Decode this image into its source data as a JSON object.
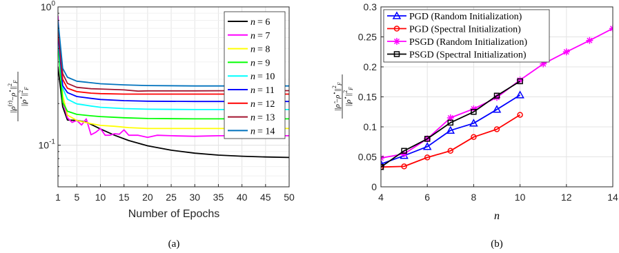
{
  "chart_data": [
    {
      "type": "line",
      "title": "",
      "xlabel": "Number of Epochs",
      "ylabel": "||ρ^(τ) − ρ*||²_F / ||ρ*||²_F",
      "caption": "(a)",
      "yscale": "log",
      "xlim": [
        1,
        50
      ],
      "ylim": [
        0.05,
        1
      ],
      "xticks": [
        1,
        5,
        10,
        15,
        20,
        25,
        30,
        35,
        40,
        45,
        50
      ],
      "yticks": [
        {
          "value": 0.1,
          "base": "10",
          "exp": "-1"
        },
        {
          "value": 1,
          "base": "10",
          "exp": "0"
        }
      ],
      "grid": true,
      "legend_position": "top-right",
      "series": [
        {
          "name": "n = 6",
          "label_var": "n",
          "label_val": "= 6",
          "color": "#000000",
          "points": [
            [
              1,
              0.37
            ],
            [
              2,
              0.19
            ],
            [
              3,
              0.152
            ],
            [
              5,
              0.151
            ],
            [
              7,
              0.147
            ],
            [
              10,
              0.131
            ],
            [
              13,
              0.118
            ],
            [
              16,
              0.108
            ],
            [
              20,
              0.099
            ],
            [
              25,
              0.092
            ],
            [
              30,
              0.0875
            ],
            [
              35,
              0.0848
            ],
            [
              40,
              0.0832
            ],
            [
              45,
              0.0822
            ],
            [
              50,
              0.0815
            ]
          ]
        },
        {
          "name": "n = 7",
          "label_var": "n",
          "label_val": "= 7",
          "color": "#ff00ff",
          "points": [
            [
              1,
              0.86
            ],
            [
              2,
              0.21
            ],
            [
              3,
              0.158
            ],
            [
              4,
              0.146
            ],
            [
              5,
              0.151
            ],
            [
              6,
              0.14
            ],
            [
              7,
              0.155
            ],
            [
              8,
              0.119
            ],
            [
              9,
              0.124
            ],
            [
              10,
              0.132
            ],
            [
              11,
              0.118
            ],
            [
              12,
              0.118
            ],
            [
              13,
              0.121
            ],
            [
              14,
              0.12
            ],
            [
              15,
              0.129
            ],
            [
              16,
              0.118
            ],
            [
              18,
              0.118
            ],
            [
              20,
              0.114
            ],
            [
              22,
              0.118
            ],
            [
              25,
              0.117
            ],
            [
              30,
              0.116
            ],
            [
              35,
              0.117
            ],
            [
              40,
              0.117
            ],
            [
              45,
              0.117
            ],
            [
              50,
              0.117
            ]
          ]
        },
        {
          "name": "n = 8",
          "label_var": "n",
          "label_val": "= 8",
          "color": "#ffff00",
          "points": [
            [
              1,
              0.8
            ],
            [
              2,
              0.23
            ],
            [
              3,
              0.165
            ],
            [
              5,
              0.151
            ],
            [
              8,
              0.143
            ],
            [
              10,
              0.139
            ],
            [
              13,
              0.137
            ],
            [
              16,
              0.134
            ],
            [
              20,
              0.132
            ],
            [
              30,
              0.132
            ],
            [
              40,
              0.132
            ],
            [
              50,
              0.132
            ]
          ]
        },
        {
          "name": "n = 9",
          "label_var": "n",
          "label_val": "= 9",
          "color": "#00ff00",
          "points": [
            [
              1,
              0.55
            ],
            [
              2,
              0.205
            ],
            [
              3,
              0.176
            ],
            [
              5,
              0.167
            ],
            [
              8,
              0.163
            ],
            [
              10,
              0.161
            ],
            [
              15,
              0.158
            ],
            [
              20,
              0.156
            ],
            [
              30,
              0.155
            ],
            [
              40,
              0.155
            ],
            [
              50,
              0.155
            ]
          ]
        },
        {
          "name": "n = 10",
          "label_var": "n",
          "label_val": "= 10",
          "color": "#00ffff",
          "points": [
            [
              1,
              0.6
            ],
            [
              2,
              0.26
            ],
            [
              3,
              0.215
            ],
            [
              5,
              0.199
            ],
            [
              8,
              0.192
            ],
            [
              10,
              0.188
            ],
            [
              15,
              0.184
            ],
            [
              20,
              0.182
            ],
            [
              30,
              0.181
            ],
            [
              40,
              0.181
            ],
            [
              50,
              0.181
            ]
          ]
        },
        {
          "name": "n = 11",
          "label_var": "n",
          "label_val": "= 11",
          "color": "#0000ff",
          "points": [
            [
              1,
              0.65
            ],
            [
              2,
              0.27
            ],
            [
              3,
              0.24
            ],
            [
              5,
              0.225
            ],
            [
              8,
              0.218
            ],
            [
              10,
              0.214
            ],
            [
              15,
              0.21
            ],
            [
              20,
              0.208
            ],
            [
              30,
              0.207
            ],
            [
              40,
              0.207
            ],
            [
              50,
              0.207
            ]
          ]
        },
        {
          "name": "n = 12",
          "label_var": "n",
          "label_val": "= 12",
          "color": "#ff0000",
          "points": [
            [
              1,
              0.7
            ],
            [
              2,
              0.3
            ],
            [
              3,
              0.258
            ],
            [
              5,
              0.244
            ],
            [
              8,
              0.238
            ],
            [
              10,
              0.236
            ],
            [
              15,
              0.234
            ],
            [
              20,
              0.234
            ],
            [
              30,
              0.234
            ],
            [
              40,
              0.234
            ],
            [
              50,
              0.234
            ]
          ]
        },
        {
          "name": "n = 13",
          "label_var": "n",
          "label_val": "= 13",
          "color": "#a2142f",
          "points": [
            [
              1,
              0.75
            ],
            [
              2,
              0.33
            ],
            [
              3,
              0.28
            ],
            [
              5,
              0.262
            ],
            [
              8,
              0.256
            ],
            [
              10,
              0.255
            ],
            [
              15,
              0.251
            ],
            [
              18,
              0.246
            ],
            [
              20,
              0.247
            ],
            [
              30,
              0.247
            ],
            [
              40,
              0.248
            ],
            [
              50,
              0.248
            ]
          ]
        },
        {
          "name": "n = 14",
          "label_var": "n",
          "label_val": "= 14",
          "color": "#0072bd",
          "points": [
            [
              1,
              0.8
            ],
            [
              2,
              0.36
            ],
            [
              3,
              0.31
            ],
            [
              5,
              0.29
            ],
            [
              8,
              0.283
            ],
            [
              10,
              0.278
            ],
            [
              15,
              0.273
            ],
            [
              20,
              0.27
            ],
            [
              30,
              0.268
            ],
            [
              40,
              0.268
            ],
            [
              50,
              0.268
            ]
          ]
        }
      ]
    },
    {
      "type": "line",
      "title": "",
      "xlabel": "n",
      "ylabel": "||ρ̂ − ρ*||²_F / ||ρ*||²_F",
      "caption": "(b)",
      "xlim": [
        4,
        14
      ],
      "ylim": [
        0,
        0.3
      ],
      "xticks": [
        4,
        6,
        8,
        10,
        12,
        14
      ],
      "yticks": [
        0,
        0.05,
        0.1,
        0.15,
        0.2,
        0.25,
        0.3
      ],
      "grid": true,
      "legend_position": "top-left",
      "series": [
        {
          "name": "PGD  (Random Initialization)",
          "color": "#0000ff",
          "marker": "triangle",
          "x": [
            4,
            5,
            6,
            7,
            8,
            9,
            10
          ],
          "y": [
            0.038,
            0.052,
            0.067,
            0.094,
            0.106,
            0.129,
            0.153
          ]
        },
        {
          "name": "PGD  (Spectral Initialization)",
          "color": "#ff0000",
          "marker": "circle",
          "x": [
            4,
            5,
            6,
            7,
            8,
            9,
            10
          ],
          "y": [
            0.033,
            0.034,
            0.049,
            0.06,
            0.083,
            0.096,
            0.12
          ]
        },
        {
          "name": "PSGD (Random Initialization)",
          "color": "#ff00ff",
          "marker": "star",
          "x": [
            4,
            5,
            6,
            7,
            8,
            9,
            10,
            11,
            12,
            13,
            14
          ],
          "y": [
            0.048,
            0.055,
            0.08,
            0.115,
            0.13,
            0.149,
            0.178,
            0.205,
            0.225,
            0.244,
            0.264
          ]
        },
        {
          "name": "PSGD (Spectral Initialization)",
          "color": "#000000",
          "marker": "square",
          "x": [
            4,
            5,
            6,
            7,
            8,
            9,
            10
          ],
          "y": [
            0.033,
            0.06,
            0.08,
            0.107,
            0.125,
            0.152,
            0.176
          ]
        }
      ]
    }
  ]
}
